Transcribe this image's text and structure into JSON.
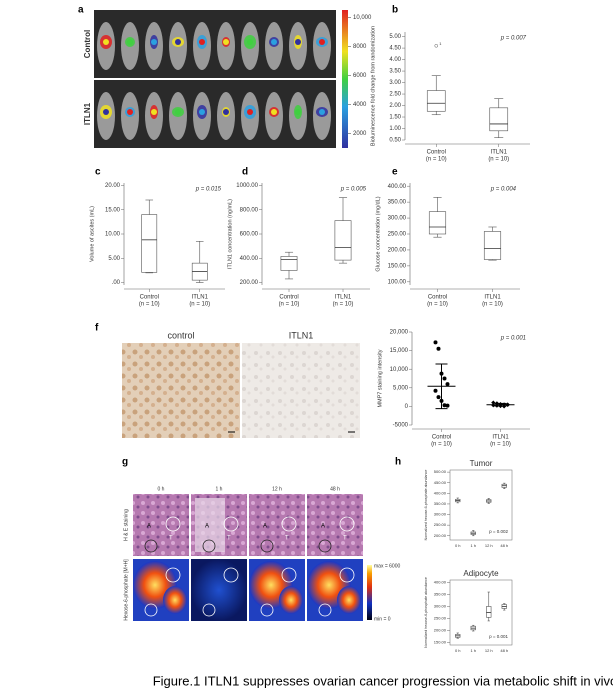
{
  "panel_labels": [
    "a",
    "b",
    "c",
    "d",
    "e",
    "f",
    "g",
    "h"
  ],
  "caption": "Figure.1 ITLN1 suppresses ovarian cancer progression via metabolic shift in vivo",
  "panel_a": {
    "row_labels": [
      "Control",
      "ITLN1"
    ],
    "colorbar": {
      "lim": [
        1000,
        10500
      ],
      "ticks": [
        2000,
        4000,
        6000,
        8000,
        {
          "value": 10000,
          "label": "10,000"
        }
      ]
    }
  },
  "panel_f": {
    "image_labels": [
      "control",
      "ITLN1"
    ]
  },
  "panel_g": {
    "time_labels": [
      "0 h",
      "1 h",
      "12 h",
      "48 h"
    ],
    "row_labels": [
      "H & E staining",
      "Hexose-6-phosphate [M+H]"
    ],
    "colorbar_labels": [
      "max = 6000",
      "min = 0"
    ],
    "region_labels": [
      "A",
      "T"
    ]
  },
  "chart_data": [
    {
      "type": "box",
      "ylabel": "Bioluminescence fold change from randomization",
      "categories": [
        "Control",
        "ITLN1"
      ],
      "category_notes": [
        "(n = 10)",
        "(n = 10)"
      ],
      "annotation": "p = 0.007",
      "ylim": [
        0.5,
        5.2
      ],
      "yticks": [
        {
          "value": 0.5,
          "label": "0.50"
        },
        {
          "value": 1,
          "label": "1.00"
        },
        {
          "value": 1.5,
          "label": "1.50"
        },
        {
          "value": 2,
          "label": "2.00"
        },
        {
          "value": 2.5,
          "label": "2.50"
        },
        {
          "value": 3,
          "label": "3.00"
        },
        {
          "value": 3.5,
          "label": "3.50"
        },
        {
          "value": 4,
          "label": "4.00"
        },
        {
          "value": 4.5,
          "label": "4.50"
        },
        {
          "value": 5,
          "label": "5.00"
        }
      ],
      "boxes": [
        {
          "min": 1.6,
          "q1": 1.75,
          "median": 2.1,
          "q3": 2.65,
          "max": 3.3,
          "outliers": [
            4.6
          ],
          "outlier_labels": [
            "1"
          ]
        },
        {
          "min": 0.6,
          "q1": 0.9,
          "median": 1.2,
          "q3": 1.9,
          "max": 2.3
        }
      ]
    },
    {
      "type": "box",
      "ylabel": "Volume of ascites (mL)",
      "categories": [
        "Control",
        "ITLN1"
      ],
      "category_notes": [
        "(n = 10)",
        "(n = 10)"
      ],
      "annotation": "p = 0.015",
      "ylim": [
        -0.5,
        20.5
      ],
      "yticks": [
        {
          "value": 0,
          "label": ".00"
        },
        {
          "value": 5,
          "label": "5.00"
        },
        {
          "value": 10,
          "label": "10.00"
        },
        {
          "value": 15,
          "label": "15.00"
        },
        {
          "value": 20,
          "label": "20.00"
        }
      ],
      "boxes": [
        {
          "min": 2,
          "q1": 2.1,
          "median": 8.8,
          "q3": 14,
          "max": 17
        },
        {
          "min": 0,
          "q1": 0.5,
          "median": 2.3,
          "q3": 4,
          "max": 8.5
        }
      ]
    },
    {
      "type": "box",
      "ylabel": "ITLN1 concentration (ng/mL)",
      "categories": [
        "Control",
        "ITLN1"
      ],
      "category_notes": [
        "(n = 10)",
        "(n = 10)"
      ],
      "annotation": "p = 0.005",
      "ylim": [
        180,
        1020
      ],
      "yticks": [
        {
          "value": 200,
          "label": "200.00"
        },
        {
          "value": 400,
          "label": "400.00"
        },
        {
          "value": 600,
          "label": "600.00"
        },
        {
          "value": 800,
          "label": "800.00"
        },
        {
          "value": 1000,
          "label": "1000.00"
        }
      ],
      "boxes": [
        {
          "min": 230,
          "q1": 300,
          "median": 390,
          "q3": 415,
          "max": 450
        },
        {
          "min": 360,
          "q1": 385,
          "median": 490,
          "q3": 710,
          "max": 900
        }
      ]
    },
    {
      "type": "box",
      "ylabel": "Glucose concentration (mg/dL)",
      "categories": [
        "Control",
        "ITLN1"
      ],
      "category_notes": [
        "(n = 10)",
        "(n = 10)"
      ],
      "annotation": "p = 0.004",
      "ylim": [
        90,
        410
      ],
      "yticks": [
        {
          "value": 100,
          "label": "100.00"
        },
        {
          "value": 150,
          "label": "150.00"
        },
        {
          "value": 200,
          "label": "200.00"
        },
        {
          "value": 250,
          "label": "250.00"
        },
        {
          "value": 300,
          "label": "300.00"
        },
        {
          "value": 350,
          "label": "350.00"
        },
        {
          "value": 400,
          "label": "400.00"
        }
      ],
      "boxes": [
        {
          "min": 240,
          "q1": 250,
          "median": 272,
          "q3": 320,
          "max": 365
        },
        {
          "min": 168,
          "q1": 170,
          "median": 205,
          "q3": 258,
          "max": 272
        }
      ]
    },
    {
      "type": "dot",
      "ylabel": "MMP7 staining intensity",
      "categories": [
        "Control",
        "ITLN1"
      ],
      "category_notes": [
        "(n = 10)",
        "(n = 10)"
      ],
      "annotation": "p = 0.001",
      "ylim": [
        -5000,
        20000
      ],
      "yticks": [
        -5000,
        0,
        {
          "value": 5000,
          "label": "5,000"
        },
        {
          "value": 10000,
          "label": "10,000"
        },
        {
          "value": 15000,
          "label": "15,000"
        },
        {
          "value": 20000,
          "label": "20,000"
        }
      ],
      "points": [
        [
          17200,
          15500,
          8800,
          7500,
          6000,
          4200,
          2500,
          1500,
          300,
          200
        ],
        [
          1000,
          800,
          600,
          500,
          400,
          300,
          200,
          100,
          0,
          500
        ]
      ],
      "means": [
        5400,
        450
      ],
      "sd": [
        6000,
        350
      ]
    },
    {
      "type": "box",
      "title": "Tumor",
      "ylabel": "Normalized hexose-6-phosphate abundance",
      "categories": [
        "0 h",
        "1 h",
        "12 h",
        "48 h"
      ],
      "annotation": "p = 0.002",
      "ylim": [
        180,
        510
      ],
      "yticks": [
        {
          "value": 200,
          "label": "200.00"
        },
        {
          "value": 250,
          "label": "250.00"
        },
        {
          "value": 300,
          "label": "300.00"
        },
        {
          "value": 350,
          "label": "350.00"
        },
        {
          "value": 400,
          "label": "400.00"
        },
        {
          "value": 450,
          "label": "450.00"
        },
        {
          "value": 500,
          "label": "500.00"
        }
      ],
      "boxes": [
        {
          "min": 355,
          "q1": 360,
          "median": 366,
          "q3": 372,
          "max": 378
        },
        {
          "min": 200,
          "q1": 206,
          "median": 212,
          "q3": 218,
          "max": 225
        },
        {
          "min": 352,
          "q1": 358,
          "median": 364,
          "q3": 370,
          "max": 376
        },
        {
          "min": 422,
          "q1": 428,
          "median": 436,
          "q3": 443,
          "max": 448
        }
      ]
    },
    {
      "type": "box",
      "title": "Adipocyte",
      "ylabel": "Normalized hexose-6-phosphate abundance",
      "categories": [
        "0 h",
        "1 h",
        "12 h",
        "48 h"
      ],
      "annotation": "p = 0.001",
      "ylim": [
        140,
        410
      ],
      "yticks": [
        {
          "value": 150,
          "label": "150.00"
        },
        {
          "value": 200,
          "label": "200.00"
        },
        {
          "value": 250,
          "label": "250.00"
        },
        {
          "value": 300,
          "label": "300.00"
        },
        {
          "value": 350,
          "label": "350.00"
        },
        {
          "value": 400,
          "label": "400.00"
        }
      ],
      "boxes": [
        {
          "min": 168,
          "q1": 172,
          "median": 178,
          "q3": 184,
          "max": 190
        },
        {
          "min": 198,
          "q1": 203,
          "median": 210,
          "q3": 218,
          "max": 222
        },
        {
          "min": 240,
          "q1": 255,
          "median": 275,
          "q3": 300,
          "max": 360
        },
        {
          "min": 285,
          "q1": 292,
          "median": 300,
          "q3": 308,
          "max": 312
        }
      ]
    }
  ]
}
